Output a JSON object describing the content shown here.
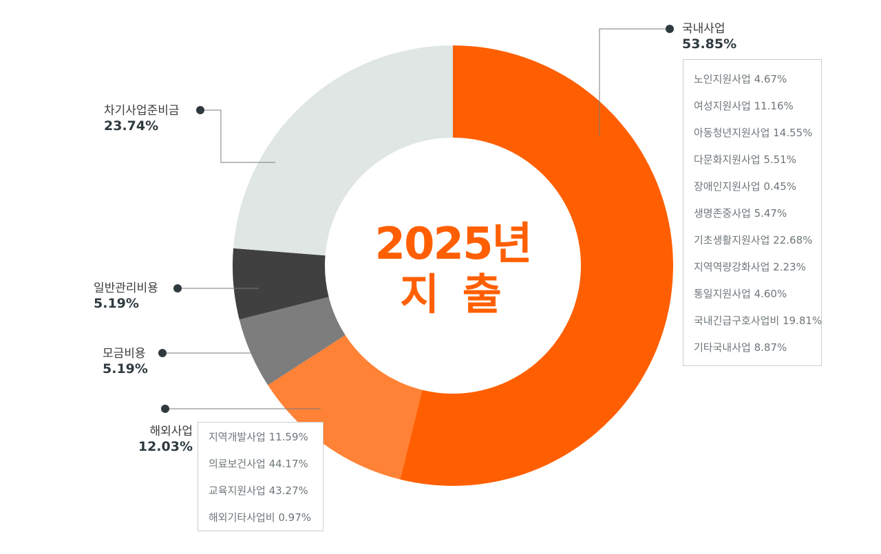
{
  "center": {
    "year": "2025년",
    "label": "지 출"
  },
  "chart_data": {
    "type": "pie",
    "donut": true,
    "slices": [
      {
        "name": "국내사업",
        "value": 53.85,
        "label": "53.85%",
        "color": "#ff5f00"
      },
      {
        "name": "해외사업",
        "value": 12.03,
        "label": "12.03%",
        "color": "#ff8236"
      },
      {
        "name": "모금비용",
        "value": 5.19,
        "label": "5.19%",
        "color": "#7d7d7d"
      },
      {
        "name": "일반관리비용",
        "value": 5.19,
        "label": "5.19%",
        "color": "#404040"
      },
      {
        "name": "차기사업준비금",
        "value": 23.74,
        "label": "23.74%",
        "color": "#dfe6e4"
      }
    ],
    "breakdowns": {
      "domestic": [
        "노인지원사업 4.67%",
        "여성지원사업 11.16%",
        "아동청년지원사업 14.55%",
        "다문화지원사업 5.51%",
        "장애인지원사업 0.45%",
        "생명존중사업 5.47%",
        "기초생활지원사업 22.68%",
        "지역역량강화사업 2.23%",
        "통일지원사업 4.60%",
        "국내긴급구호사업비 19.81%",
        "기타국내사업 8.87%"
      ],
      "overseas": [
        "지역개발사업 11.59%",
        "의료보건사업 44.17%",
        "교육지원사업 43.27%",
        "해외기타사업비 0.97%"
      ]
    }
  }
}
